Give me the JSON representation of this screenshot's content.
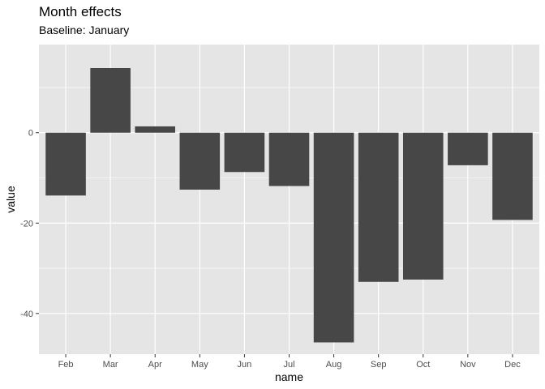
{
  "chart_data": {
    "type": "bar",
    "title": "Month effects",
    "subtitle": "Baseline: January",
    "xlabel": "name",
    "ylabel": "value",
    "categories": [
      "Feb",
      "Mar",
      "Apr",
      "May",
      "Jun",
      "Jul",
      "Aug",
      "Sep",
      "Oct",
      "Nov",
      "Dec"
    ],
    "values": [
      -13.9,
      14.3,
      1.4,
      -12.6,
      -8.7,
      -11.8,
      -46.4,
      -33.0,
      -32.5,
      -7.2,
      -19.3
    ],
    "ylim": [
      -49,
      19.5
    ],
    "yticks": [
      0,
      -20,
      -40
    ],
    "ytick_labels": [
      "0",
      "-20",
      "-40"
    ],
    "grid": true,
    "colors": {
      "bar": "#474747",
      "panel": "#e5e5e5",
      "grid": "#ffffff",
      "tick_text": "#4d4d4d"
    }
  }
}
